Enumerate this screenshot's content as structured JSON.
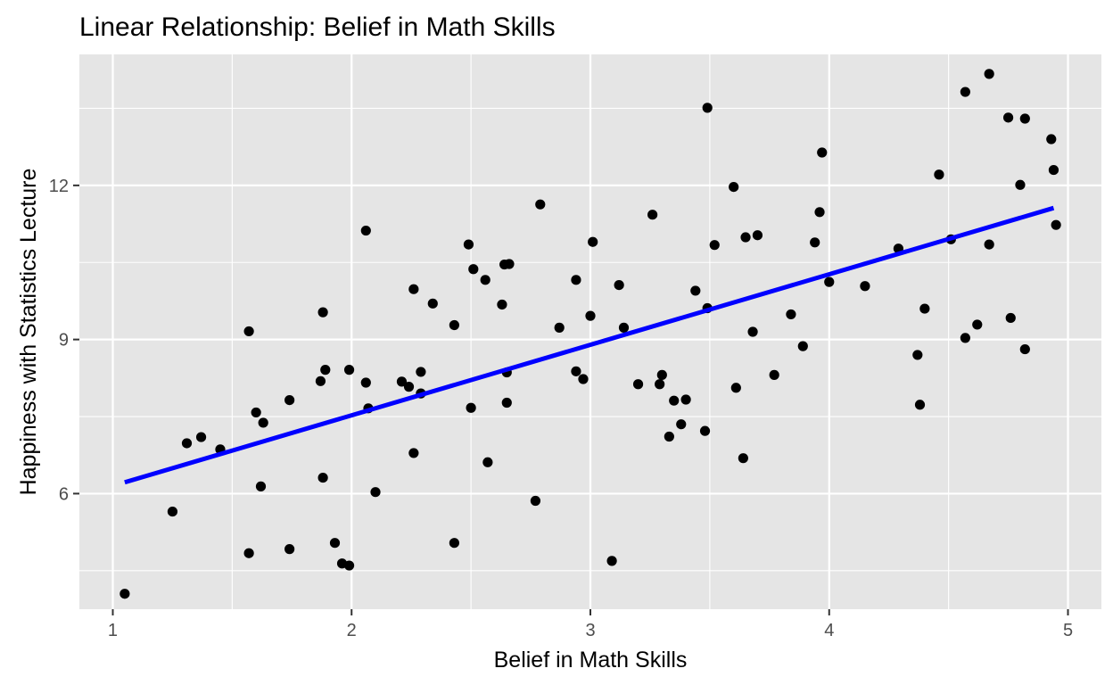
{
  "chart_data": {
    "type": "scatter",
    "title": "Linear Relationship: Belief in Math Skills",
    "xlabel": "Belief in Math Skills",
    "ylabel": "Happiness with Statistics Lecture",
    "xlim": [
      0.86,
      5.14
    ],
    "ylim": [
      3.75,
      14.55
    ],
    "x_ticks": [
      1,
      2,
      3,
      4,
      5
    ],
    "y_ticks": [
      6,
      9,
      12
    ],
    "grid": true,
    "legend": "none",
    "colors": {
      "panel": "#e5e5e5",
      "grid": "#ffffff",
      "points": "#000000",
      "fit_line": "#0000ff"
    },
    "fit_line": {
      "x": [
        1.05,
        4.94
      ],
      "y": [
        6.22,
        11.56
      ]
    },
    "points": [
      [
        1.05,
        4.05
      ],
      [
        1.25,
        5.65
      ],
      [
        1.31,
        6.98
      ],
      [
        1.37,
        7.1
      ],
      [
        1.45,
        6.86
      ],
      [
        1.57,
        9.16
      ],
      [
        1.57,
        4.84
      ],
      [
        1.6,
        7.58
      ],
      [
        1.62,
        6.14
      ],
      [
        1.63,
        7.38
      ],
      [
        1.74,
        7.82
      ],
      [
        1.74,
        4.92
      ],
      [
        1.87,
        8.19
      ],
      [
        1.88,
        9.53
      ],
      [
        1.88,
        6.31
      ],
      [
        1.89,
        8.41
      ],
      [
        1.93,
        5.04
      ],
      [
        1.96,
        4.64
      ],
      [
        1.99,
        4.6
      ],
      [
        1.99,
        8.41
      ],
      [
        2.06,
        11.12
      ],
      [
        2.06,
        8.16
      ],
      [
        2.07,
        7.66
      ],
      [
        2.1,
        6.03
      ],
      [
        2.21,
        8.18
      ],
      [
        2.24,
        8.08
      ],
      [
        2.26,
        9.98
      ],
      [
        2.26,
        6.79
      ],
      [
        2.29,
        7.95
      ],
      [
        2.29,
        8.37
      ],
      [
        2.34,
        9.7
      ],
      [
        2.43,
        9.28
      ],
      [
        2.43,
        5.04
      ],
      [
        2.49,
        10.85
      ],
      [
        2.5,
        7.67
      ],
      [
        2.51,
        10.37
      ],
      [
        2.56,
        10.16
      ],
      [
        2.57,
        6.61
      ],
      [
        2.63,
        9.68
      ],
      [
        2.64,
        10.46
      ],
      [
        2.65,
        7.77
      ],
      [
        2.65,
        8.36
      ],
      [
        2.66,
        10.47
      ],
      [
        2.77,
        5.86
      ],
      [
        2.79,
        11.63
      ],
      [
        2.87,
        9.23
      ],
      [
        2.94,
        10.16
      ],
      [
        2.94,
        8.38
      ],
      [
        2.97,
        8.23
      ],
      [
        3.0,
        9.46
      ],
      [
        3.01,
        10.9
      ],
      [
        3.09,
        4.69
      ],
      [
        3.12,
        10.06
      ],
      [
        3.14,
        9.23
      ],
      [
        3.2,
        8.13
      ],
      [
        3.26,
        11.43
      ],
      [
        3.29,
        8.13
      ],
      [
        3.3,
        8.31
      ],
      [
        3.33,
        7.11
      ],
      [
        3.35,
        7.81
      ],
      [
        3.38,
        7.35
      ],
      [
        3.4,
        7.83
      ],
      [
        3.44,
        9.95
      ],
      [
        3.48,
        7.22
      ],
      [
        3.49,
        13.51
      ],
      [
        3.49,
        9.61
      ],
      [
        3.52,
        10.84
      ],
      [
        3.6,
        11.97
      ],
      [
        3.61,
        8.06
      ],
      [
        3.64,
        6.69
      ],
      [
        3.65,
        10.99
      ],
      [
        3.68,
        9.15
      ],
      [
        3.7,
        11.03
      ],
      [
        3.77,
        8.31
      ],
      [
        3.84,
        9.49
      ],
      [
        3.89,
        8.87
      ],
      [
        3.94,
        10.89
      ],
      [
        3.96,
        11.48
      ],
      [
        3.97,
        12.64
      ],
      [
        4.0,
        10.12
      ],
      [
        4.15,
        10.04
      ],
      [
        4.29,
        10.77
      ],
      [
        4.37,
        8.7
      ],
      [
        4.38,
        7.73
      ],
      [
        4.4,
        9.6
      ],
      [
        4.46,
        12.21
      ],
      [
        4.51,
        10.95
      ],
      [
        4.57,
        13.82
      ],
      [
        4.57,
        9.03
      ],
      [
        4.62,
        9.29
      ],
      [
        4.67,
        14.17
      ],
      [
        4.67,
        10.85
      ],
      [
        4.75,
        13.32
      ],
      [
        4.76,
        9.42
      ],
      [
        4.8,
        12.01
      ],
      [
        4.82,
        13.3
      ],
      [
        4.82,
        8.81
      ],
      [
        4.93,
        12.9
      ],
      [
        4.94,
        12.3
      ],
      [
        4.95,
        11.23
      ]
    ]
  }
}
